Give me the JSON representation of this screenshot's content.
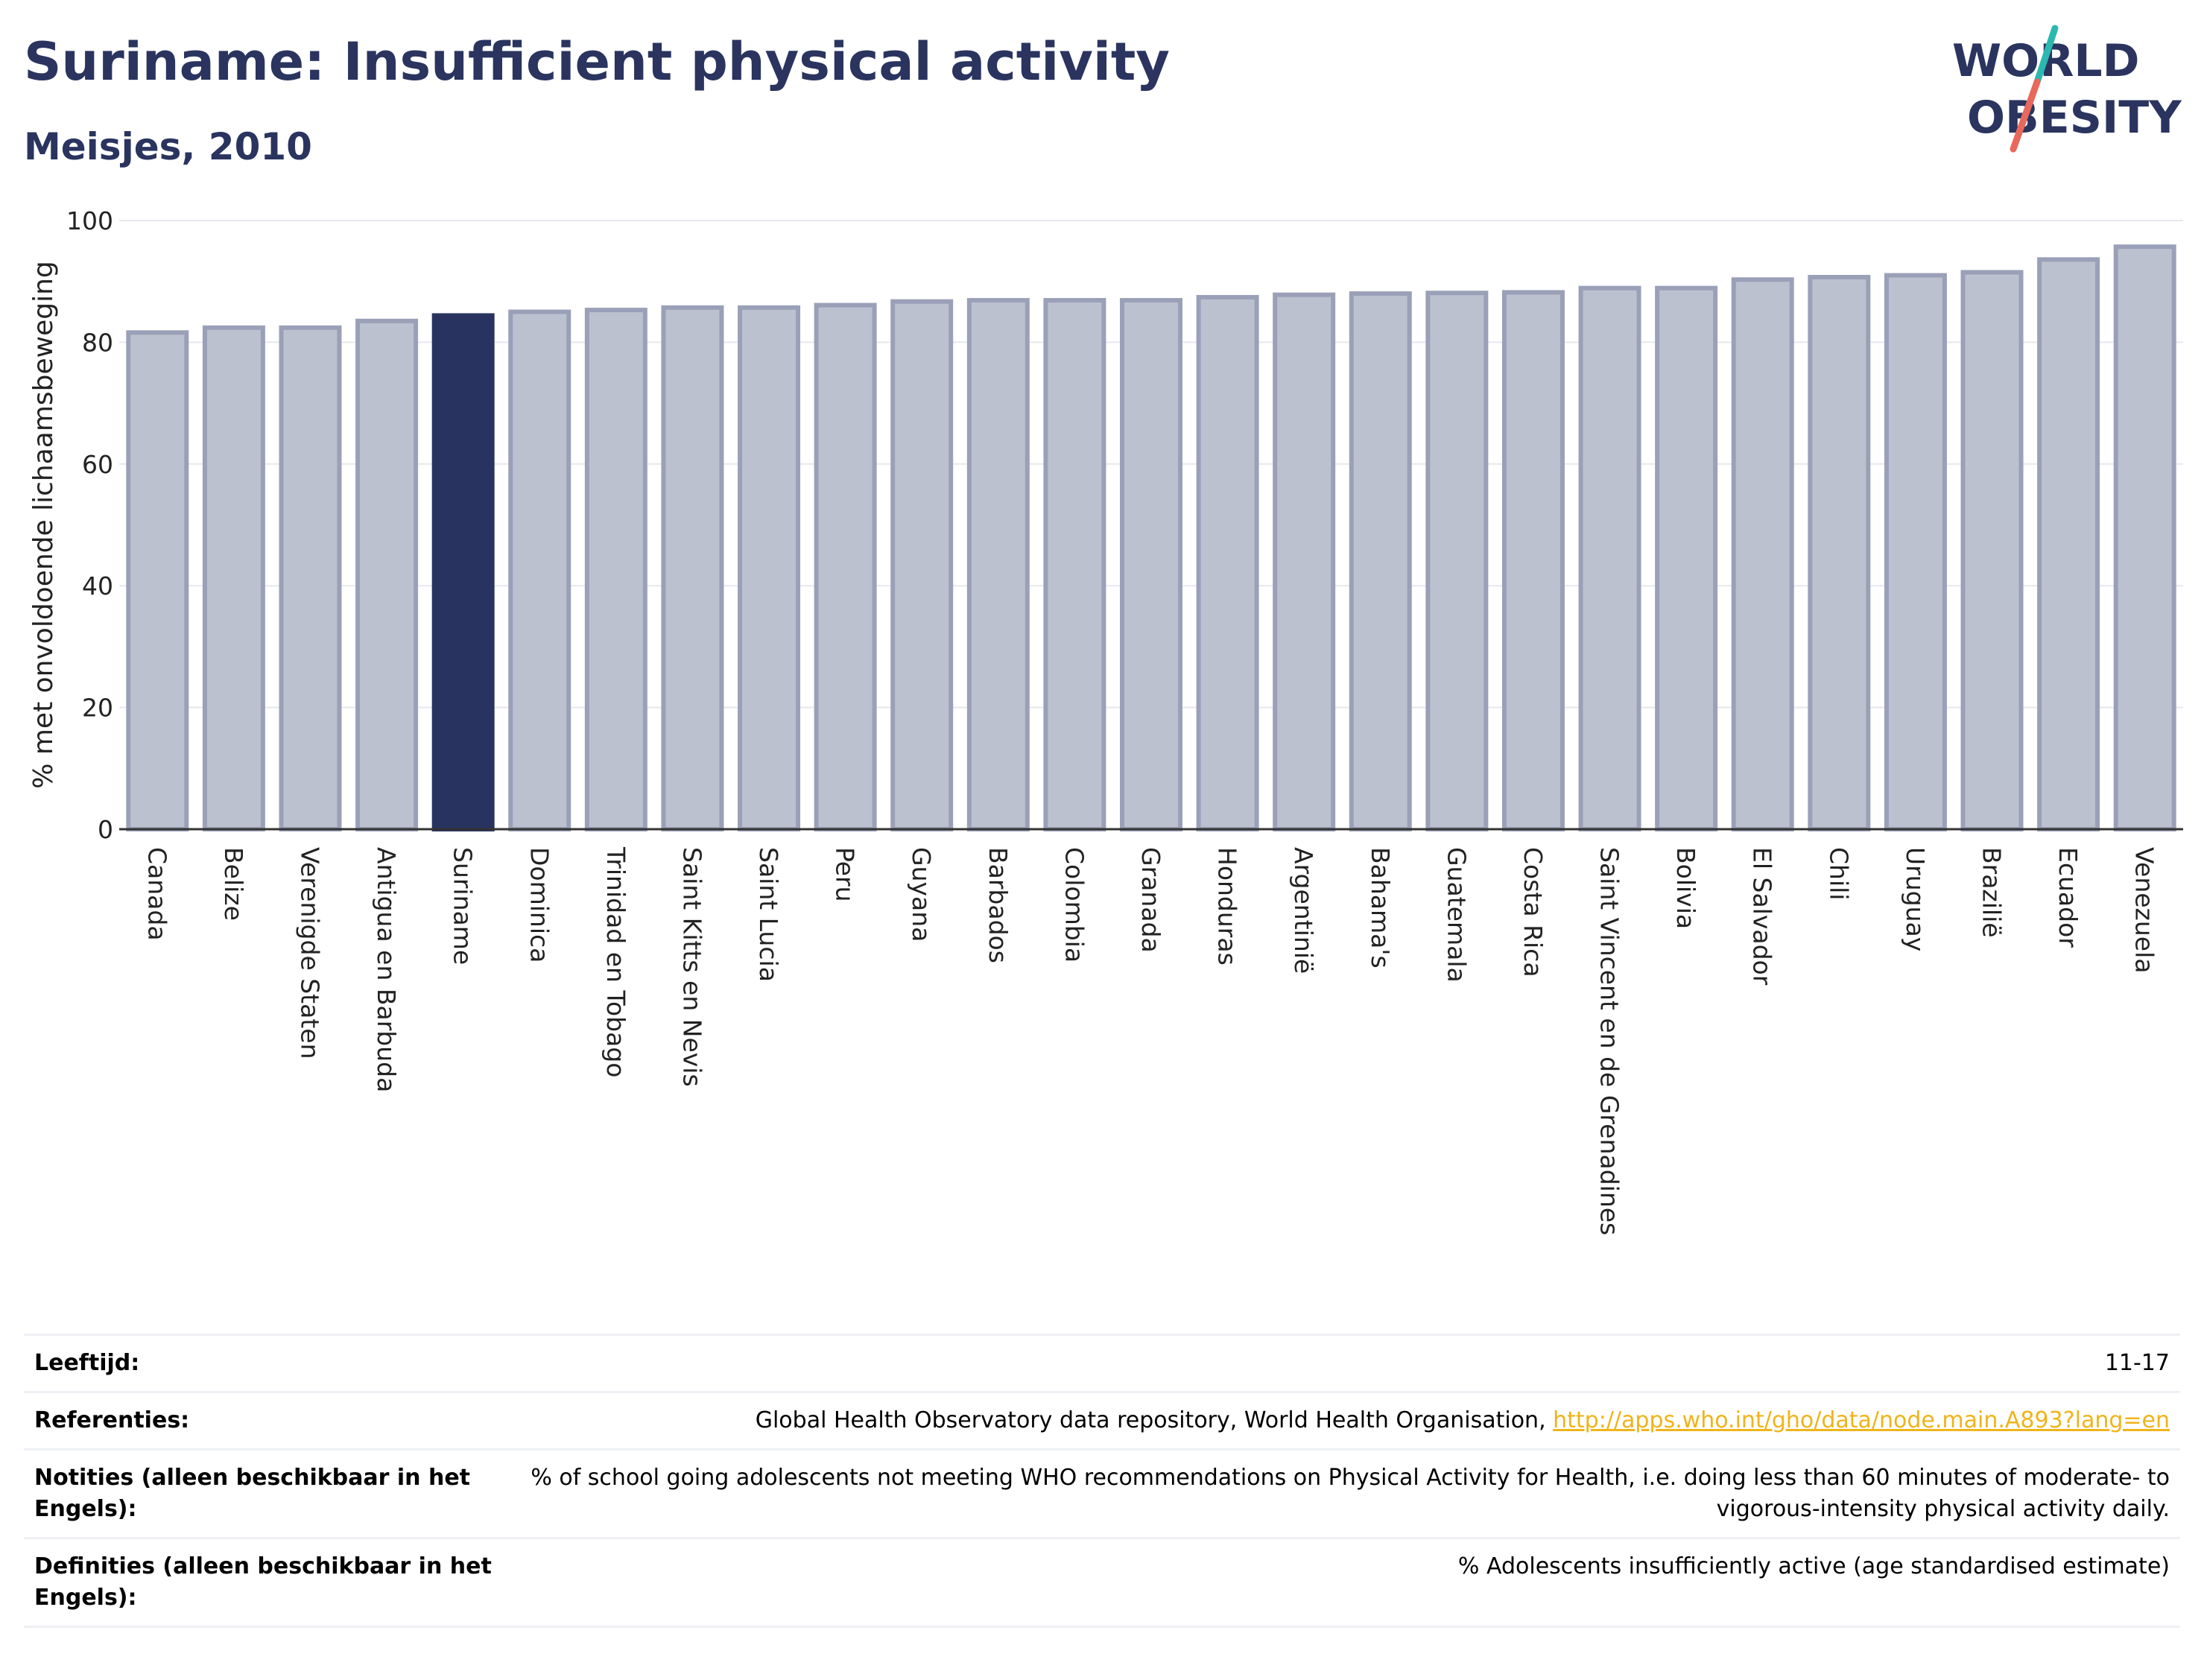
{
  "header": {
    "title": "Suriname: Insufficient physical activity",
    "subtitle": "Meisjes, 2010"
  },
  "logo": {
    "line1": "WORLD",
    "line2": "OBESITY"
  },
  "colors": {
    "highlight": "#29335f",
    "bar_fill": "#bcc1cf",
    "bar_stroke": "#9aa0b7",
    "title": "#2a345f",
    "link": "#f0b41a"
  },
  "chart_data": {
    "type": "bar",
    "ylabel": "% met onvoldoende lichaamsbeweging",
    "xlabel": "",
    "ylim": [
      0,
      100
    ],
    "yticks": [
      0,
      20,
      40,
      60,
      80,
      100
    ],
    "grid": true,
    "highlight": "Suriname",
    "categories": [
      "Canada",
      "Belize",
      "Verenigde Staten",
      "Antigua en Barbuda",
      "Suriname",
      "Dominica",
      "Trinidad en Tobago",
      "Saint Kitts en Nevis",
      "Saint Lucia",
      "Peru",
      "Guyana",
      "Barbados",
      "Colombia",
      "Granada",
      "Honduras",
      "Argentinië",
      "Bahama's",
      "Guatemala",
      "Costa Rica",
      "Saint Vincent en de Grenadines",
      "Bolivia",
      "El Salvador",
      "Chili",
      "Uruguay",
      "Brazilië",
      "Ecuador",
      "Venezuela"
    ],
    "values": [
      81.6,
      82.4,
      82.4,
      83.5,
      84.4,
      85.0,
      85.3,
      85.7,
      85.7,
      86.1,
      86.7,
      86.9,
      86.9,
      86.9,
      87.4,
      87.8,
      88.0,
      88.1,
      88.2,
      88.9,
      88.9,
      90.3,
      90.7,
      91.0,
      91.5,
      93.6,
      95.7
    ]
  },
  "meta": {
    "rows": [
      {
        "label": "Leeftijd:",
        "value": "11-17"
      },
      {
        "label": "Referenties:",
        "value": "Global Health Observatory data repository, World Health Organisation, ",
        "link": "http://apps.who.int/gho/data/node.main.A893?lang=en"
      },
      {
        "label": "Notities (alleen beschikbaar in het Engels):",
        "value": "% of school going adolescents not meeting WHO recommendations on Physical Activity for Health, i.e. doing less than 60 minutes of moderate- to vigorous-intensity physical activity daily."
      },
      {
        "label": "Definities (alleen beschikbaar in het Engels):",
        "value": "% Adolescents insufficiently active (age standardised estimate)"
      }
    ]
  }
}
